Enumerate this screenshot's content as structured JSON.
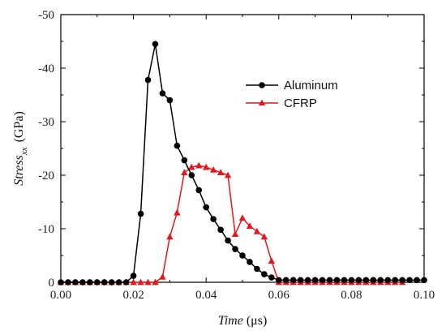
{
  "chart_data": {
    "type": "line",
    "xlabel_main": "Time",
    "xlabel_unit": " (μs)",
    "ylabel_main": "Stress",
    "ylabel_sub": "xx",
    "ylabel_unit": "(GPa)",
    "xlim": [
      0.0,
      0.1
    ],
    "ylim_top": -50,
    "ylim_bottom": 0,
    "y_axis_inverted": true,
    "x_ticks": [
      "0.00",
      "0.02",
      "0.04",
      "0.06",
      "0.08",
      "0.10"
    ],
    "x_tick_values": [
      0.0,
      0.02,
      0.04,
      0.06,
      0.08,
      0.1
    ],
    "y_ticks": [
      "-50",
      "-40",
      "-30",
      "-20",
      "-10",
      "0"
    ],
    "y_tick_values": [
      -50,
      -40,
      -30,
      -20,
      -10,
      0
    ],
    "grid": false,
    "legend_position": "top-right",
    "series": [
      {
        "name": "Aluminum",
        "color": "#000000",
        "marker": "circle",
        "x": [
          0.0,
          0.002,
          0.004,
          0.006,
          0.008,
          0.01,
          0.012,
          0.014,
          0.016,
          0.018,
          0.02,
          0.022,
          0.024,
          0.026,
          0.028,
          0.03,
          0.032,
          0.034,
          0.036,
          0.038,
          0.04,
          0.042,
          0.044,
          0.046,
          0.048,
          0.05,
          0.052,
          0.054,
          0.056,
          0.058,
          0.06,
          0.062,
          0.064,
          0.066,
          0.068,
          0.07,
          0.072,
          0.074,
          0.076,
          0.078,
          0.08,
          0.082,
          0.084,
          0.086,
          0.088,
          0.09,
          0.092,
          0.094,
          0.096,
          0.098,
          0.1
        ],
        "y": [
          0,
          0,
          0,
          0,
          0,
          0,
          0,
          0,
          0,
          0,
          -1.2,
          -12.8,
          -37.8,
          -44.5,
          -35.3,
          -34.0,
          -25.5,
          -22.8,
          -20.0,
          -17.2,
          -14.0,
          -11.8,
          -9.8,
          -7.8,
          -6.2,
          -5.0,
          -3.8,
          -2.5,
          -1.5,
          -0.9,
          -0.4,
          -0.4,
          -0.4,
          -0.4,
          -0.4,
          -0.4,
          -0.4,
          -0.4,
          -0.4,
          -0.4,
          -0.4,
          -0.4,
          -0.4,
          -0.4,
          -0.4,
          -0.4,
          -0.4,
          -0.4,
          -0.4,
          -0.4,
          -0.4
        ]
      },
      {
        "name": "CFRP",
        "color": "#e8141b",
        "marker": "triangle",
        "x": [
          0.0,
          0.002,
          0.004,
          0.006,
          0.008,
          0.01,
          0.012,
          0.014,
          0.016,
          0.018,
          0.02,
          0.022,
          0.024,
          0.026,
          0.028,
          0.03,
          0.032,
          0.034,
          0.036,
          0.038,
          0.04,
          0.042,
          0.044,
          0.046,
          0.048,
          0.05,
          0.052,
          0.054,
          0.056,
          0.058,
          0.06,
          0.062,
          0.064,
          0.066,
          0.068,
          0.07,
          0.072,
          0.074,
          0.076,
          0.078,
          0.08,
          0.082,
          0.084,
          0.086,
          0.088,
          0.09,
          0.092,
          0.094
        ],
        "y": [
          0,
          0,
          0,
          0,
          0,
          0,
          0,
          0,
          0,
          0,
          0,
          0,
          0,
          0,
          -1.0,
          -8.5,
          -13.0,
          -20.5,
          -21.5,
          -21.8,
          -21.5,
          -21.0,
          -20.5,
          -20.0,
          -9.0,
          -12.0,
          -10.5,
          -9.5,
          -8.5,
          -4.0,
          0,
          0,
          0,
          0,
          0,
          0,
          0,
          0,
          0,
          0,
          0,
          0,
          0,
          0,
          0,
          0,
          0,
          0
        ]
      }
    ]
  }
}
